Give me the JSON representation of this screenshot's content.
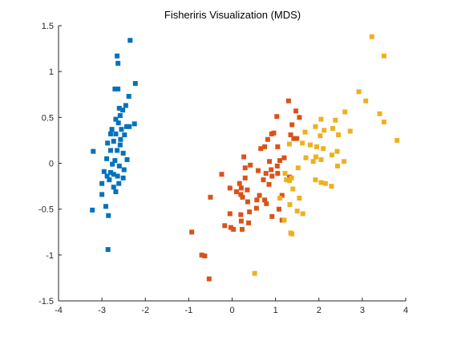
{
  "chart_data": {
    "type": "scatter",
    "title": "Fisheriris Visualization (MDS)",
    "xlabel": "",
    "ylabel": "",
    "xlim": [
      -4,
      4
    ],
    "ylim": [
      -1.5,
      1.5
    ],
    "xticks": [
      "-4",
      "-3",
      "-2",
      "-1",
      "0",
      "1",
      "2",
      "3",
      "4"
    ],
    "yticks": [
      "1.5",
      "1",
      "0.5",
      "0",
      "-0.5",
      "-1",
      "-1.5"
    ],
    "grid": false,
    "legend": "none",
    "box": "open",
    "series": [
      {
        "color": "#0072bd",
        "points": [
          [
            -2.35,
            1.34
          ],
          [
            -2.65,
            1.17
          ],
          [
            -2.63,
            1.09
          ],
          [
            -2.23,
            0.87
          ],
          [
            -2.7,
            0.81
          ],
          [
            -2.63,
            0.81
          ],
          [
            -2.38,
            0.73
          ],
          [
            -2.45,
            0.63
          ],
          [
            -2.6,
            0.6
          ],
          [
            -2.52,
            0.58
          ],
          [
            -2.58,
            0.52
          ],
          [
            -2.68,
            0.48
          ],
          [
            -2.62,
            0.44
          ],
          [
            -2.25,
            0.43
          ],
          [
            -2.43,
            0.4
          ],
          [
            -2.37,
            0.4
          ],
          [
            -2.77,
            0.37
          ],
          [
            -2.55,
            0.37
          ],
          [
            -2.8,
            0.32
          ],
          [
            -2.68,
            0.32
          ],
          [
            -2.48,
            0.31
          ],
          [
            -2.57,
            0.26
          ],
          [
            -2.73,
            0.24
          ],
          [
            -2.87,
            0.22
          ],
          [
            -2.58,
            0.2
          ],
          [
            -2.8,
            0.14
          ],
          [
            -2.65,
            0.14
          ],
          [
            -2.51,
            0.11
          ],
          [
            -3.2,
            0.13
          ],
          [
            -2.89,
            0.05
          ],
          [
            -2.7,
            0.03
          ],
          [
            -2.42,
            0.04
          ],
          [
            -2.76,
            -0.01
          ],
          [
            -2.6,
            -0.03
          ],
          [
            -2.49,
            -0.07
          ],
          [
            -2.95,
            -0.09
          ],
          [
            -2.8,
            -0.1
          ],
          [
            -2.73,
            -0.12
          ],
          [
            -2.64,
            -0.14
          ],
          [
            -2.88,
            -0.14
          ],
          [
            -2.51,
            -0.16
          ],
          [
            -2.83,
            -0.18
          ],
          [
            -3.0,
            -0.22
          ],
          [
            -2.61,
            -0.22
          ],
          [
            -2.73,
            -0.26
          ],
          [
            -2.68,
            -0.31
          ],
          [
            -3.0,
            -0.34
          ],
          [
            -2.91,
            -0.47
          ],
          [
            -3.22,
            -0.51
          ],
          [
            -2.85,
            -0.57
          ],
          [
            -2.86,
            -0.94
          ]
        ]
      },
      {
        "color": "#d95319",
        "points": [
          [
            1.3,
            0.68
          ],
          [
            1.47,
            0.57
          ],
          [
            1.03,
            0.51
          ],
          [
            1.55,
            0.5
          ],
          [
            1.38,
            0.42
          ],
          [
            0.96,
            0.33
          ],
          [
            0.91,
            0.32
          ],
          [
            1.35,
            0.31
          ],
          [
            1.42,
            0.27
          ],
          [
            1.49,
            0.27
          ],
          [
            0.82,
            0.26
          ],
          [
            1.05,
            0.18
          ],
          [
            0.75,
            0.18
          ],
          [
            0.66,
            0.16
          ],
          [
            1.2,
            0.06
          ],
          [
            1.1,
            0.03
          ],
          [
            0.27,
            0.07
          ],
          [
            0.86,
            0.02
          ],
          [
            0.42,
            -0.02
          ],
          [
            1.04,
            -0.03
          ],
          [
            0.3,
            -0.05
          ],
          [
            0.9,
            -0.07
          ],
          [
            0.6,
            -0.08
          ],
          [
            0.78,
            -0.11
          ],
          [
            1.05,
            -0.11
          ],
          [
            -0.24,
            -0.12
          ],
          [
            0.92,
            -0.14
          ],
          [
            1.32,
            -0.15
          ],
          [
            0.3,
            -0.16
          ],
          [
            0.72,
            -0.18
          ],
          [
            0.17,
            -0.22
          ],
          [
            0.85,
            -0.23
          ],
          [
            0.21,
            -0.27
          ],
          [
            -0.05,
            -0.27
          ],
          [
            0.35,
            -0.29
          ],
          [
            0.1,
            -0.31
          ],
          [
            0.2,
            -0.34
          ],
          [
            0.63,
            -0.35
          ],
          [
            1.15,
            -0.35
          ],
          [
            0.24,
            -0.37
          ],
          [
            -0.5,
            -0.37
          ],
          [
            0.75,
            -0.4
          ],
          [
            0.57,
            -0.4
          ],
          [
            0.36,
            -0.42
          ],
          [
            0.79,
            -0.44
          ],
          [
            0.56,
            -0.49
          ],
          [
            1.08,
            -0.5
          ],
          [
            0.4,
            -0.53
          ],
          [
            -0.05,
            -0.55
          ],
          [
            0.2,
            -0.56
          ],
          [
            0.92,
            -0.58
          ],
          [
            1.15,
            -0.62
          ],
          [
            0.21,
            -0.63
          ],
          [
            0.38,
            -0.65
          ],
          [
            -0.17,
            -0.68
          ],
          [
            -0.03,
            -0.7
          ],
          [
            0.03,
            -0.72
          ],
          [
            0.23,
            -0.72
          ],
          [
            -0.93,
            -0.75
          ],
          [
            -0.7,
            -1.0
          ],
          [
            -0.63,
            -1.01
          ],
          [
            -0.53,
            -1.26
          ]
        ]
      },
      {
        "color": "#edb120",
        "points": [
          [
            3.22,
            1.38
          ],
          [
            3.5,
            1.17
          ],
          [
            2.92,
            0.78
          ],
          [
            3.08,
            0.68
          ],
          [
            2.6,
            0.56
          ],
          [
            3.4,
            0.54
          ],
          [
            2.05,
            0.48
          ],
          [
            2.38,
            0.47
          ],
          [
            3.5,
            0.45
          ],
          [
            1.92,
            0.4
          ],
          [
            2.32,
            0.38
          ],
          [
            2.12,
            0.36
          ],
          [
            2.72,
            0.35
          ],
          [
            1.68,
            0.34
          ],
          [
            2.45,
            0.31
          ],
          [
            2.03,
            0.3
          ],
          [
            3.8,
            0.25
          ],
          [
            1.62,
            0.22
          ],
          [
            1.32,
            0.21
          ],
          [
            1.8,
            0.2
          ],
          [
            1.95,
            0.18
          ],
          [
            2.1,
            0.16
          ],
          [
            2.42,
            0.13
          ],
          [
            2.3,
            0.09
          ],
          [
            1.93,
            0.07
          ],
          [
            1.7,
            0.06
          ],
          [
            2.05,
            0.04
          ],
          [
            1.87,
            0.02
          ],
          [
            2.58,
            0.02
          ],
          [
            2.43,
            -0.03
          ],
          [
            1.52,
            -0.05
          ],
          [
            1.22,
            -0.11
          ],
          [
            1.37,
            -0.16
          ],
          [
            1.25,
            -0.18
          ],
          [
            1.92,
            -0.18
          ],
          [
            1.32,
            -0.19
          ],
          [
            2.05,
            -0.21
          ],
          [
            2.15,
            -0.22
          ],
          [
            2.29,
            -0.25
          ],
          [
            1.4,
            -0.28
          ],
          [
            1.55,
            -0.38
          ],
          [
            1.1,
            -0.38
          ],
          [
            1.33,
            -0.45
          ],
          [
            1.5,
            -0.52
          ],
          [
            1.63,
            -0.55
          ],
          [
            1.2,
            -0.62
          ],
          [
            1.35,
            -0.76
          ],
          [
            1.38,
            -0.77
          ],
          [
            0.52,
            -1.2
          ]
        ]
      }
    ]
  }
}
